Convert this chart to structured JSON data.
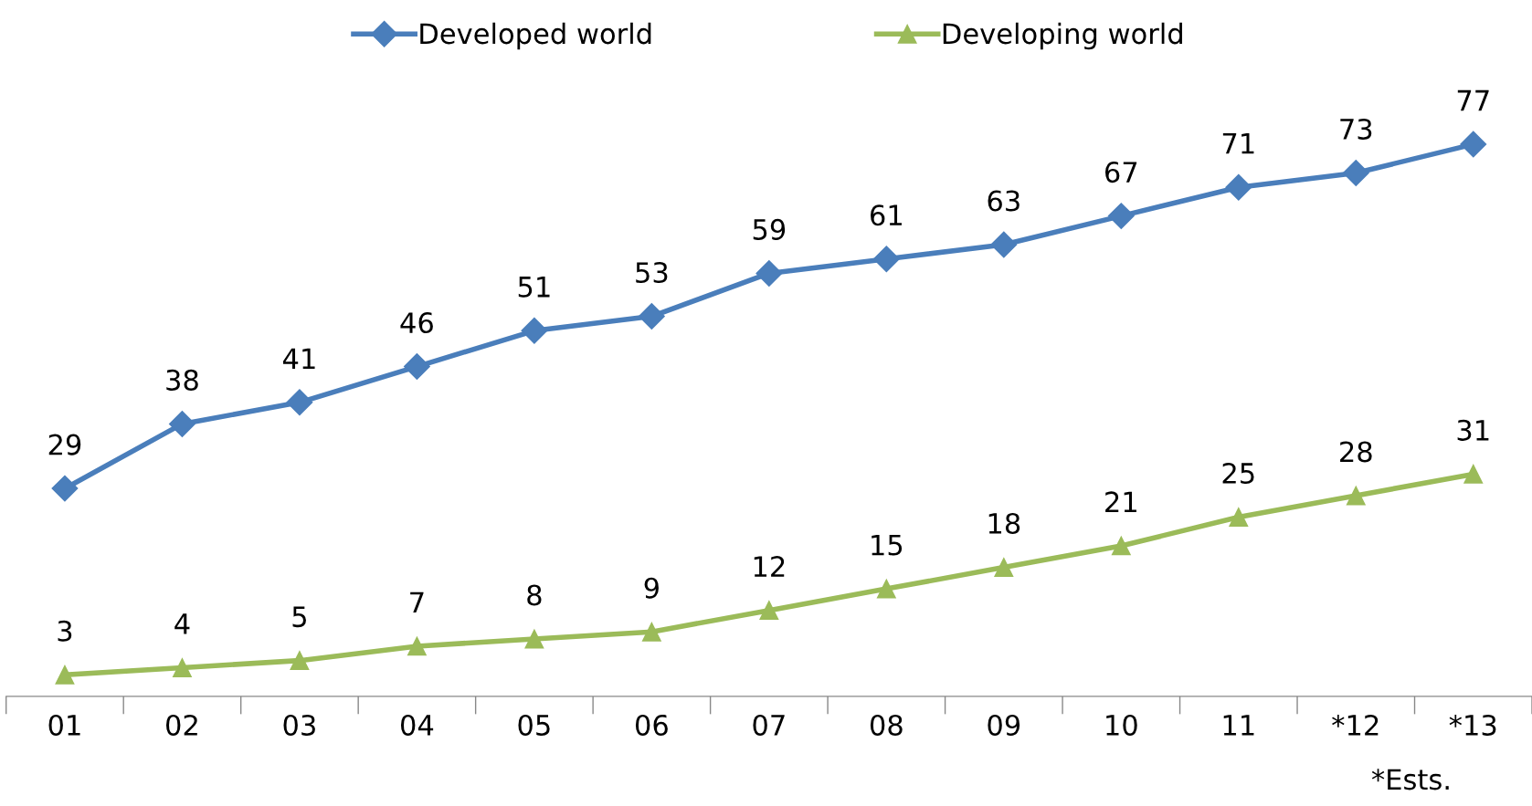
{
  "chart_data": {
    "type": "line",
    "categories": [
      "01",
      "02",
      "03",
      "04",
      "05",
      "06",
      "07",
      "08",
      "09",
      "10",
      "11",
      "*12",
      "*13"
    ],
    "series": [
      {
        "name": "Developed world",
        "color": "#4a7ebb",
        "marker": "diamond",
        "values": [
          29,
          38,
          41,
          46,
          51,
          53,
          59,
          61,
          63,
          67,
          71,
          73,
          77
        ]
      },
      {
        "name": "Developing world",
        "color": "#9bbb59",
        "marker": "triangle",
        "values": [
          3,
          4,
          5,
          7,
          8,
          9,
          12,
          15,
          18,
          21,
          25,
          28,
          31
        ]
      }
    ],
    "tick_labels": "x",
    "data_labels": true,
    "legend": "top",
    "grid": false,
    "line_style": "solid",
    "annotations": [
      "*Ests."
    ]
  }
}
